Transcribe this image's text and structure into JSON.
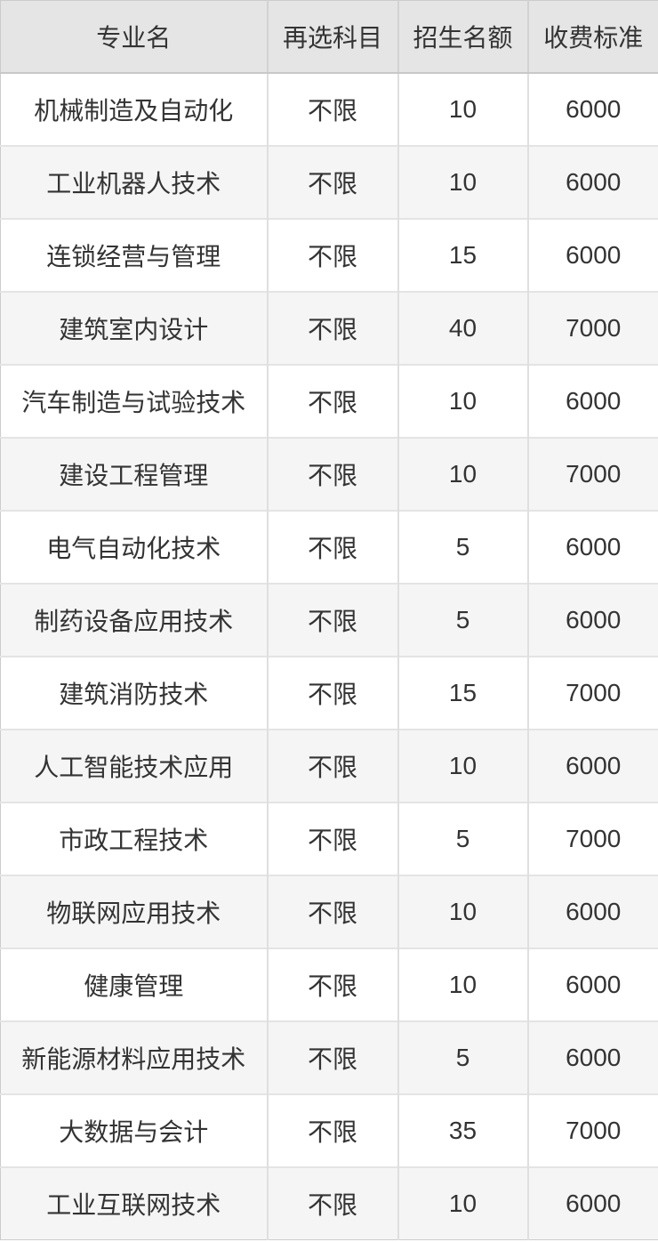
{
  "table": {
    "columns": [
      {
        "key": "major",
        "label": "专业名"
      },
      {
        "key": "subjects",
        "label": "再选科目"
      },
      {
        "key": "quota",
        "label": "招生名额"
      },
      {
        "key": "fee",
        "label": "收费标准"
      }
    ],
    "rows": [
      {
        "major": "机械制造及自动化",
        "subjects": "不限",
        "quota": "10",
        "fee": "6000"
      },
      {
        "major": "工业机器人技术",
        "subjects": "不限",
        "quota": "10",
        "fee": "6000"
      },
      {
        "major": "连锁经营与管理",
        "subjects": "不限",
        "quota": "15",
        "fee": "6000"
      },
      {
        "major": "建筑室内设计",
        "subjects": "不限",
        "quota": "40",
        "fee": "7000"
      },
      {
        "major": "汽车制造与试验技术",
        "subjects": "不限",
        "quota": "10",
        "fee": "6000"
      },
      {
        "major": "建设工程管理",
        "subjects": "不限",
        "quota": "10",
        "fee": "7000"
      },
      {
        "major": "电气自动化技术",
        "subjects": "不限",
        "quota": "5",
        "fee": "6000"
      },
      {
        "major": "制药设备应用技术",
        "subjects": "不限",
        "quota": "5",
        "fee": "6000"
      },
      {
        "major": "建筑消防技术",
        "subjects": "不限",
        "quota": "15",
        "fee": "7000"
      },
      {
        "major": "人工智能技术应用",
        "subjects": "不限",
        "quota": "10",
        "fee": "6000"
      },
      {
        "major": "市政工程技术",
        "subjects": "不限",
        "quota": "5",
        "fee": "7000"
      },
      {
        "major": "物联网应用技术",
        "subjects": "不限",
        "quota": "10",
        "fee": "6000"
      },
      {
        "major": "健康管理",
        "subjects": "不限",
        "quota": "10",
        "fee": "6000"
      },
      {
        "major": "新能源材料应用技术",
        "subjects": "不限",
        "quota": "5",
        "fee": "6000"
      },
      {
        "major": "大数据与会计",
        "subjects": "不限",
        "quota": "35",
        "fee": "7000"
      },
      {
        "major": "工业互联网技术",
        "subjects": "不限",
        "quota": "10",
        "fee": "6000"
      }
    ]
  },
  "colors": {
    "text": "#333333",
    "header_bg": "#e5e5e5",
    "row_bg": "#ffffff",
    "row_alt_bg": "#f5f5f5",
    "border_outer": "#cccccc",
    "border_header_bottom": "#c8c8c8",
    "border_header_vertical": "#d2d2d2",
    "border_inner_vertical": "#dfdfdf",
    "border_inner_horizontal": "#e4e4e4"
  }
}
